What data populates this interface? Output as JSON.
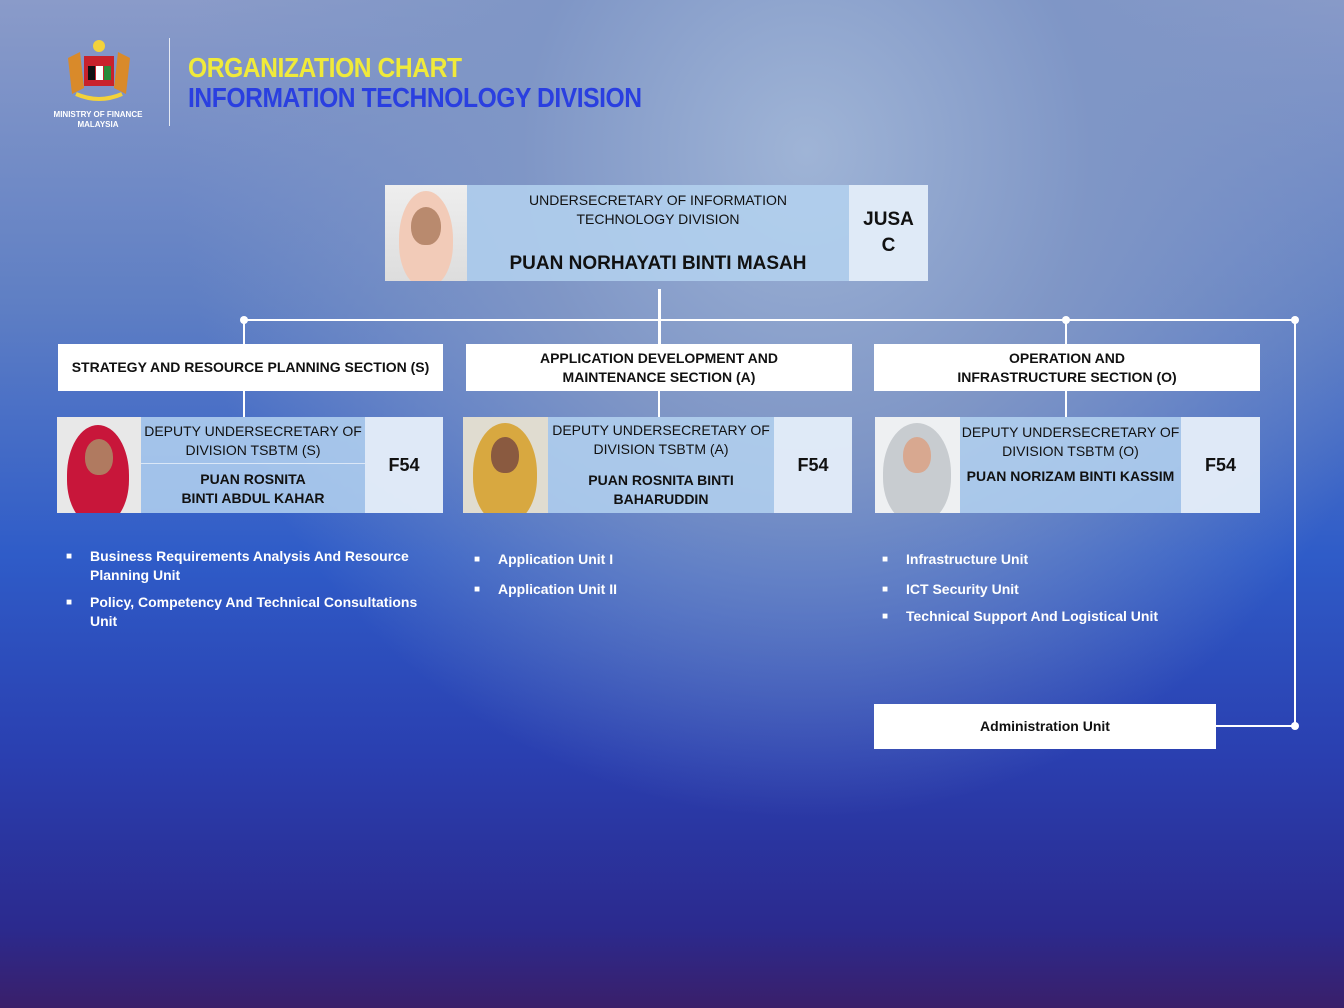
{
  "header": {
    "logo_text_line1": "MINISTRY OF FINANCE",
    "logo_text_line2": "MALAYSIA",
    "title": "ORGANIZATION CHART",
    "subtitle": "INFORMATION TECHNOLOGY DIVISION"
  },
  "head": {
    "role": "UNDERSECRETARY OF INFORMATION TECHNOLOGY DIVISION",
    "name": "PUAN NORHAYATI  BINTI MASAH",
    "grade_line1": "JUSA",
    "grade_line2": "C"
  },
  "sections": [
    {
      "title": "STRATEGY AND RESOURCE  PLANNING SECTION (S)",
      "role": "DEPUTY UNDERSECRETARY OF DIVISION TSBTM (S)",
      "name": "PUAN ROSNITA BINTI ABDUL KAHAR",
      "grade": "F54",
      "units": [
        "Business Requirements Analysis And Resource Planning Unit",
        "Policy, Competency And Technical Consultations Unit"
      ]
    },
    {
      "title": "APPLICATION DEVELOPMENT AND MAINTENANCE SECTION (A)",
      "role": "DEPUTY UNDERSECRETARY OF DIVISION TSBTM (A)",
      "name": "PUAN ROSNITA BINTI BAHARUDDIN",
      "grade": "F54",
      "units": [
        "Application Unit I",
        "Application Unit II"
      ]
    },
    {
      "title": "OPERATION AND INFRASTRUCTURE SECTION (O)",
      "role": "DEPUTY UNDERSECRETARY OF DIVISION TSBTM (O)",
      "name": "PUAN NORIZAM BINTI KASSIM",
      "grade": "F54",
      "units": [
        "Infrastructure Unit",
        "ICT Security Unit",
        "Technical Support And Logistical Unit"
      ]
    }
  ],
  "admin_unit": "Administration Unit",
  "bullet": "■"
}
